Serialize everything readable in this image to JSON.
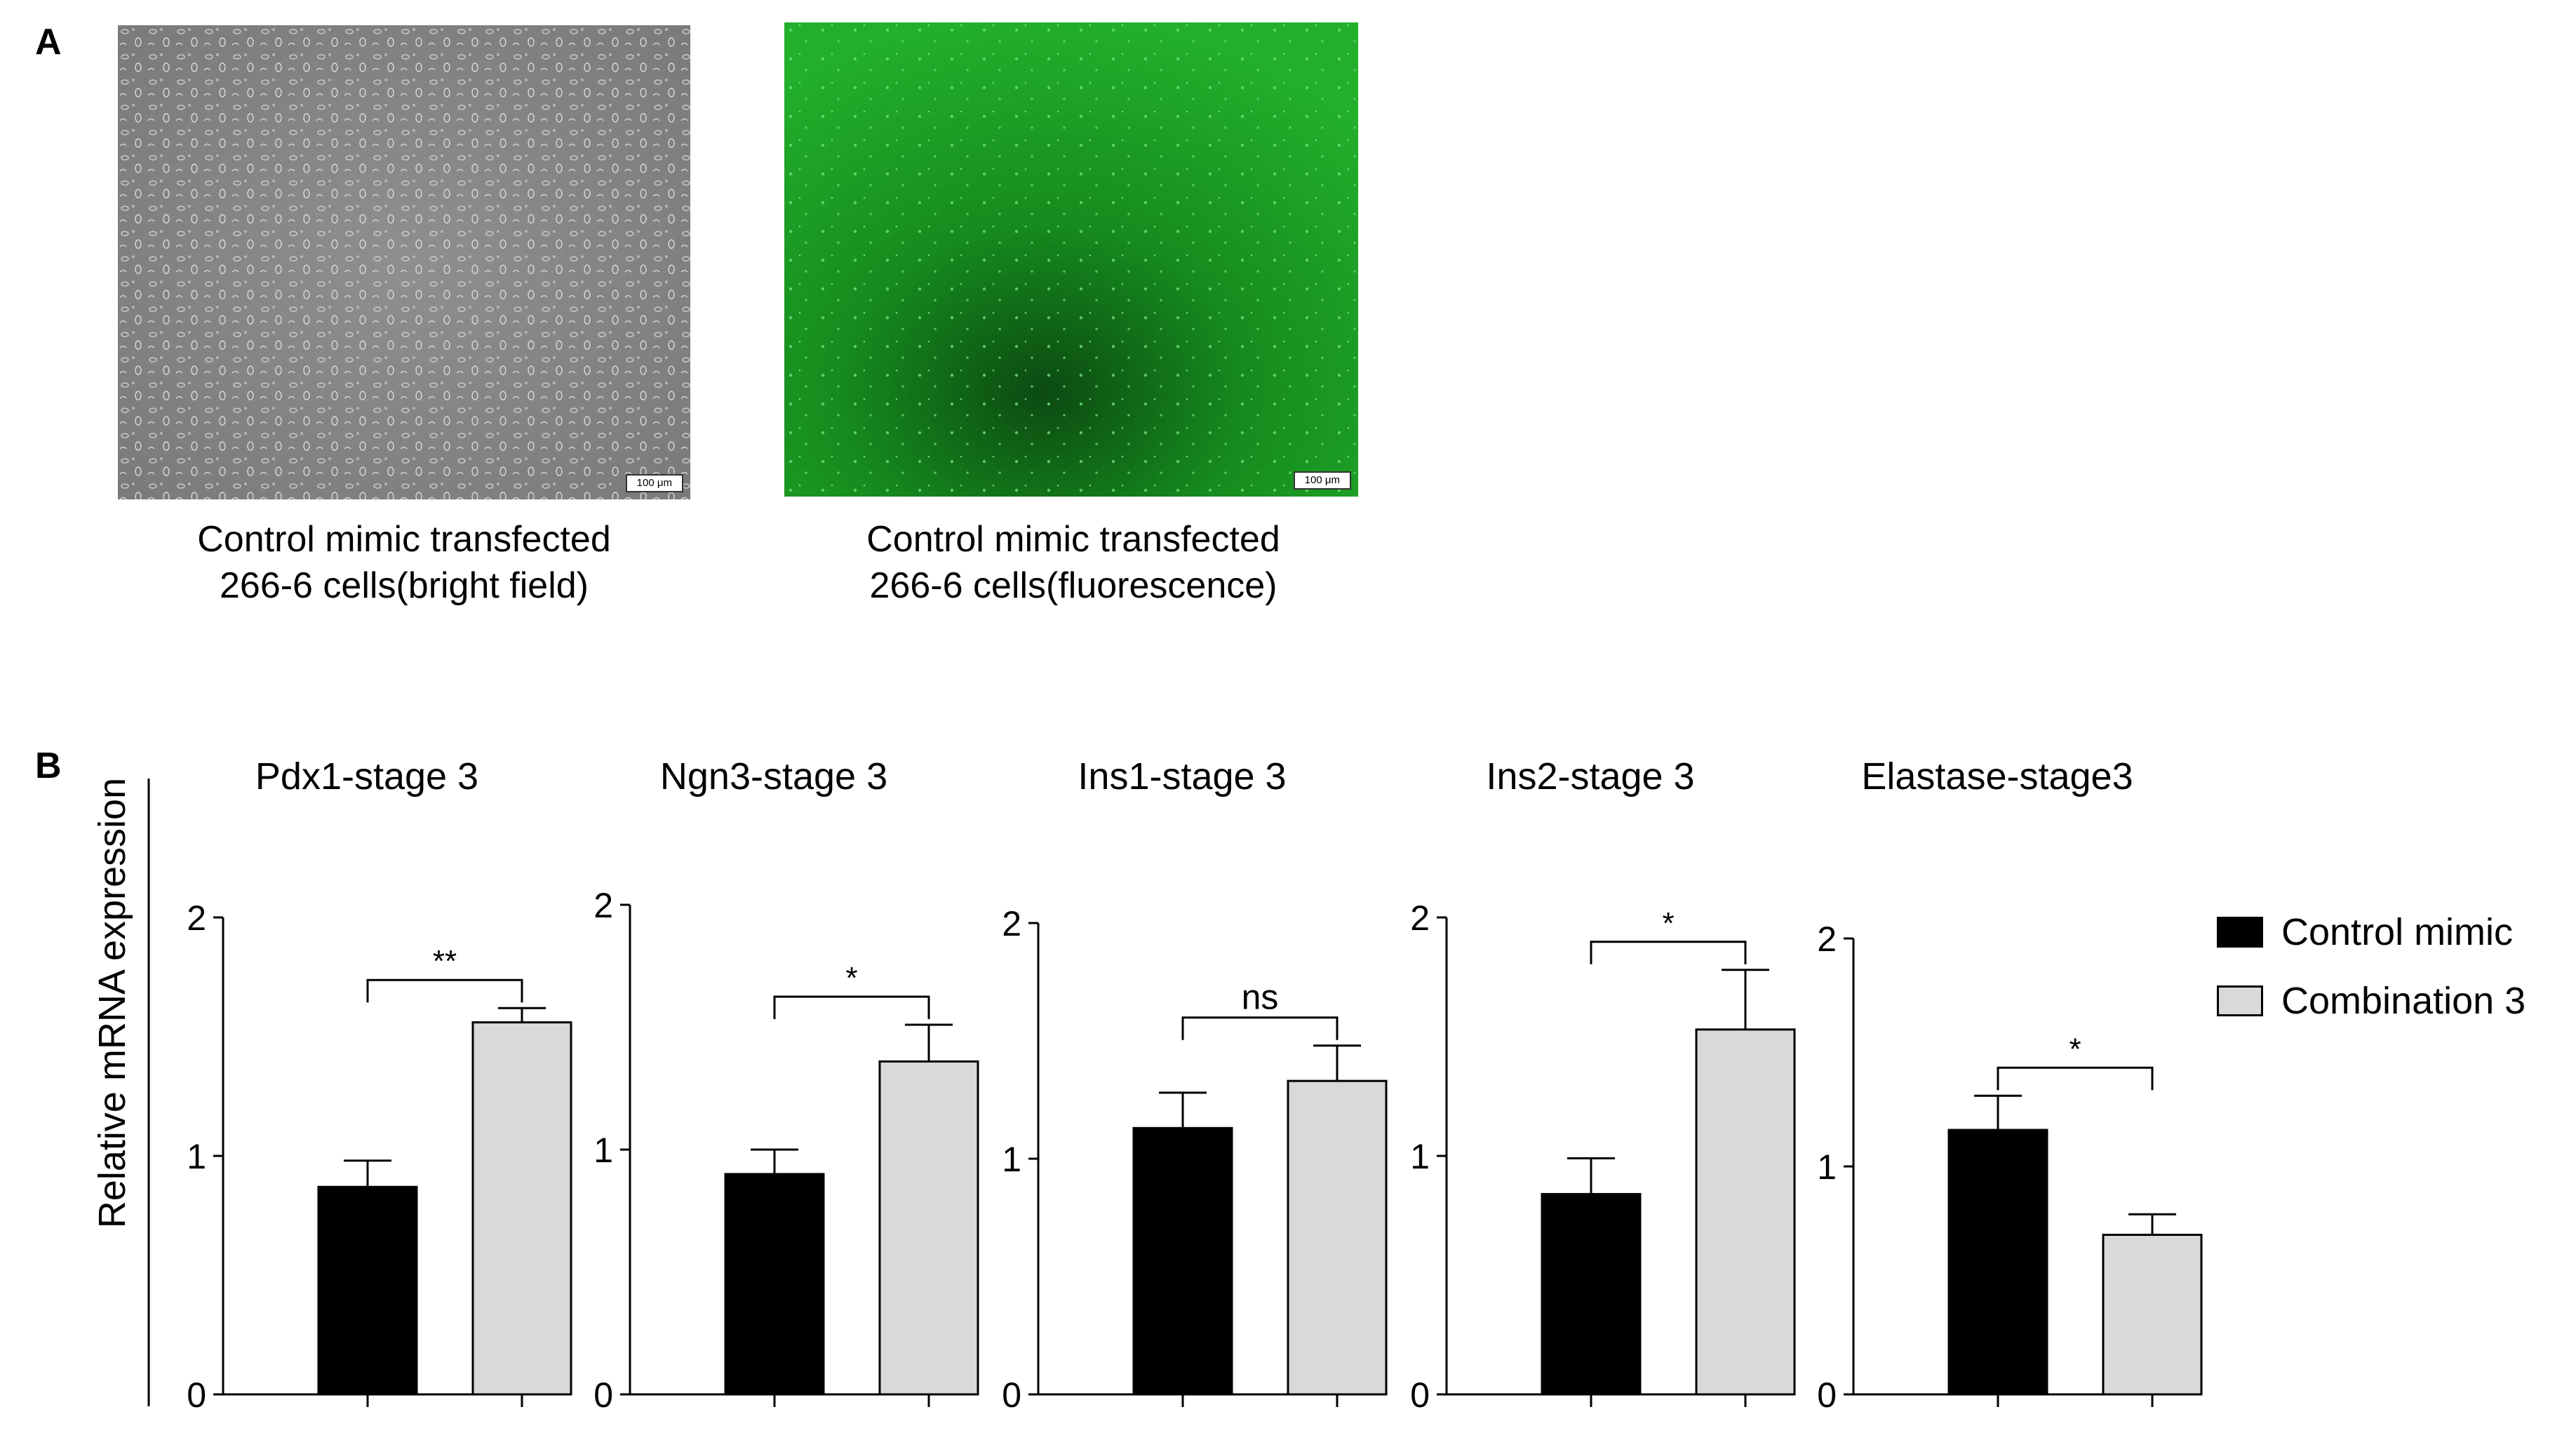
{
  "panel_a": {
    "letter": "A",
    "images": [
      {
        "caption_line1": "Control mimic transfected",
        "caption_line2": "266-6 cells(bright field)",
        "scale_label": "100 μm"
      },
      {
        "caption_line1": "Control mimic transfected",
        "caption_line2": "266-6 cells(fluorescence)",
        "scale_label": "100 μm"
      }
    ]
  },
  "panel_b": {
    "letter": "B",
    "ylabel": "Relative mRNA expression"
  },
  "legend": [
    {
      "label": "Control mimic",
      "color": "#000000"
    },
    {
      "label": "Combination 3",
      "color": "#d9d9d9"
    }
  ],
  "chart_data": [
    {
      "type": "bar",
      "title": "Pdx1-stage 3",
      "categories": [
        "Control mimic",
        "Combination 3"
      ],
      "values": [
        0.87,
        1.56
      ],
      "errors": [
        0.11,
        0.06
      ],
      "ylim": [
        0,
        2
      ],
      "yticks": [
        "0",
        "1",
        "2"
      ],
      "significance": "**"
    },
    {
      "type": "bar",
      "title": "Ngn3-stage 3",
      "categories": [
        "Control mimic",
        "Combination 3"
      ],
      "values": [
        0.9,
        1.36
      ],
      "errors": [
        0.1,
        0.15
      ],
      "ylim": [
        0,
        2
      ],
      "yticks": [
        "0",
        "1",
        "2"
      ],
      "significance": "*"
    },
    {
      "type": "bar",
      "title": "Ins1-stage 3",
      "categories": [
        "Control mimic",
        "Combination 3"
      ],
      "values": [
        1.13,
        1.33
      ],
      "errors": [
        0.15,
        0.15
      ],
      "ylim": [
        0,
        2
      ],
      "yticks": [
        "0",
        "1",
        "2"
      ],
      "significance": "ns"
    },
    {
      "type": "bar",
      "title": "Ins2-stage 3",
      "categories": [
        "Control mimic",
        "Combination 3"
      ],
      "values": [
        0.84,
        1.53
      ],
      "errors": [
        0.15,
        0.25
      ],
      "ylim": [
        0,
        2
      ],
      "yticks": [
        "0",
        "1",
        "2"
      ],
      "significance": "*"
    },
    {
      "type": "bar",
      "title": "Elastase-stage3",
      "categories": [
        "Control mimic",
        "Combination 3"
      ],
      "values": [
        1.16,
        0.7
      ],
      "errors": [
        0.15,
        0.09
      ],
      "ylim": [
        0,
        2
      ],
      "yticks": [
        "0",
        "1",
        "2"
      ],
      "significance": "*"
    }
  ]
}
